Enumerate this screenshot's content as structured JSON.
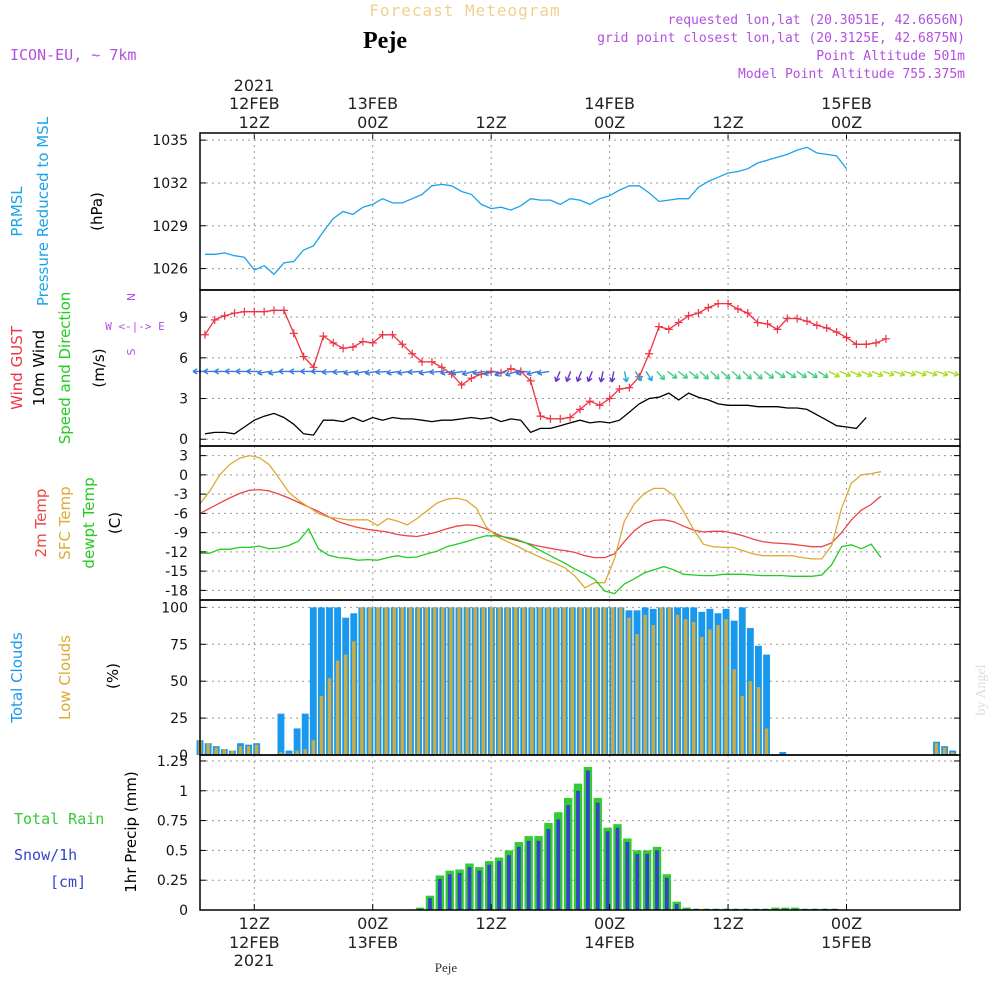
{
  "header": {
    "model": "ICON-EU, ~ 7km",
    "forecast_title": "Forecast Meteogram",
    "location": "Peje",
    "requested": "requested lon,lat (20.3051E, 42.6656N)",
    "grid_point": "grid point closest lon,lat (20.3125E, 42.6875N)",
    "point_alt": "Point Altitude 501m",
    "model_alt": "Model Point Altitude 755.375m",
    "bottom_label": "Peje",
    "watermark": "by Angel"
  },
  "time_axis": {
    "top_year": "2021",
    "ticks": [
      {
        "t": 12,
        "l1": "12FEB",
        "l2": "12Z"
      },
      {
        "t": 24,
        "l1": "13FEB",
        "l2": "00Z"
      },
      {
        "t": 36,
        "l1": "",
        "l2": "12Z"
      },
      {
        "t": 48,
        "l1": "14FEB",
        "l2": "00Z"
      },
      {
        "t": 60,
        "l1": "",
        "l2": "12Z"
      },
      {
        "t": 72,
        "l1": "15FEB",
        "l2": "00Z"
      }
    ],
    "bottom_year": "2021",
    "bottom_ticks": [
      {
        "t": 12,
        "l1": "12Z",
        "l2": "12FEB"
      },
      {
        "t": 24,
        "l1": "00Z",
        "l2": "13FEB"
      },
      {
        "t": 36,
        "l1": "12Z",
        "l2": ""
      },
      {
        "t": 48,
        "l1": "00Z",
        "l2": "14FEB"
      },
      {
        "t": 60,
        "l1": "12Z",
        "l2": ""
      },
      {
        "t": 72,
        "l1": "00Z",
        "l2": "15FEB"
      }
    ],
    "x_range": [
      6.5,
      83.5
    ]
  },
  "colors": {
    "pressure": "#1aa3e8",
    "gust": "#ee3344",
    "wind": "#000000",
    "temp2m": "#ee4444",
    "sfc": "#ddaa33",
    "dewpt": "#22cc22",
    "total_clouds": "#1899ee",
    "low_clouds": "#ccaa44",
    "rain": "#33cc33",
    "snow": "#3344cc",
    "purple": "#b150e0",
    "header_gold": "#f0d090"
  },
  "chart_data": [
    {
      "type": "line",
      "panel": "pressure",
      "label_lines": [
        [
          "PRMSL"
        ],
        [
          "Pressure Reduced to MSL"
        ]
      ],
      "unit": "(hPa)",
      "ylim": [
        1024.5,
        1035.5
      ],
      "yticks": [
        1026,
        1029,
        1032,
        1035
      ],
      "series": [
        {
          "values": [
            1027,
            1027,
            1027.1,
            1026.9,
            1026.8,
            1025.9,
            1026.2,
            1025.6,
            1026.4,
            1026.5,
            1027.3,
            1027.6,
            1028.6,
            1029.5,
            1030,
            1029.8,
            1030.3,
            1030.5,
            1030.9,
            1030.6,
            1030.6,
            1030.9,
            1031.2,
            1031.8,
            1031.9,
            1031.8,
            1031.4,
            1031.2,
            1030.5,
            1030.2,
            1030.3,
            1030.1,
            1030.4,
            1030.9,
            1030.8,
            1030.8,
            1030.5,
            1030.9,
            1030.8,
            1030.5,
            1030.9,
            1031.1,
            1031.5,
            1031.8,
            1031.8,
            1031.3,
            1030.7,
            1030.8,
            1030.9,
            1030.9,
            1031.7,
            1032.1,
            1032.4,
            1032.7,
            1032.8,
            1033,
            1033.4,
            1033.6,
            1033.8,
            1034,
            1034.3,
            1034.5,
            1034.1,
            1034,
            1033.9,
            1033
          ]
        }
      ]
    },
    {
      "type": "line",
      "panel": "wind",
      "label_lines": [
        [
          "Wind GUST"
        ],
        [
          "10m Wind"
        ],
        [
          "Speed and Direction"
        ]
      ],
      "unit": "(m/s)",
      "compass": [
        "N",
        "W <-|-> E",
        "S"
      ],
      "ylim": [
        -0.5,
        11
      ],
      "yticks": [
        0,
        3,
        6,
        9
      ],
      "series": [
        {
          "name": "Wind GUST",
          "values": [
            7.7,
            8.8,
            9.1,
            9.3,
            9.4,
            9.4,
            9.4,
            9.5,
            9.5,
            7.8,
            6.1,
            5.3,
            7.6,
            7.1,
            6.7,
            6.8,
            7.2,
            7.1,
            7.7,
            7.7,
            7,
            6.3,
            5.7,
            5.7,
            5.3,
            4.8,
            4,
            4.5,
            4.8,
            5,
            4.9,
            5.2,
            5,
            4.3,
            1.7,
            1.5,
            1.5,
            1.6,
            2.2,
            2.8,
            2.5,
            3,
            3.7,
            3.8,
            4.6,
            6.3,
            8.3,
            8.1,
            8.6,
            9.1,
            9.3,
            9.7,
            10,
            10,
            9.6,
            9.3,
            8.6,
            8.5,
            8.1,
            8.9,
            8.9,
            8.7,
            8.4,
            8.2,
            7.9,
            7.5,
            7,
            7,
            7.1,
            7.4
          ]
        },
        {
          "name": "10m Wind",
          "values": [
            0.4,
            0.5,
            0.5,
            0.4,
            0.9,
            1.4,
            1.7,
            1.9,
            1.6,
            1.1,
            0.4,
            0.3,
            1.4,
            1.4,
            1.3,
            1.6,
            1.3,
            1.6,
            1.4,
            1.6,
            1.5,
            1.5,
            1.4,
            1.3,
            1.4,
            1.4,
            1.5,
            1.6,
            1.5,
            1.6,
            1.3,
            1.5,
            1.4,
            0.5,
            0.8,
            0.8,
            1,
            1.2,
            1.4,
            1.2,
            1.3,
            1.2,
            1.4,
            2,
            2.6,
            3,
            3.1,
            3.4,
            2.9,
            3.4,
            3.1,
            2.9,
            2.6,
            2.5,
            2.5,
            2.5,
            2.4,
            2.4,
            2.4,
            2.3,
            2.3,
            2.2,
            1.8,
            1.4,
            1,
            0.9,
            0.8,
            1.6
          ]
        }
      ],
      "arrows": {
        "level": 5,
        "angles": [
          180,
          180,
          180,
          180,
          180,
          180,
          170,
          170,
          180,
          180,
          180,
          180,
          175,
          175,
          170,
          170,
          170,
          175,
          170,
          170,
          175,
          170,
          175,
          170,
          170,
          165,
          170,
          165,
          160,
          160,
          170,
          165,
          170,
          110,
          110,
          110,
          110,
          100,
          100,
          80,
          60,
          60,
          50,
          40,
          40,
          40,
          45,
          45,
          45,
          45,
          45,
          45,
          40,
          35,
          35,
          35,
          35,
          35,
          30,
          25,
          25,
          25,
          25,
          20,
          20,
          20,
          20,
          20,
          20,
          20
        ]
      }
    },
    {
      "type": "line",
      "panel": "temperature",
      "label_lines": [
        [
          "2m Temp"
        ],
        [
          "SFC Temp"
        ],
        [
          "dewpt Temp"
        ]
      ],
      "unit": "(C)",
      "ylim": [
        -19.5,
        4.5
      ],
      "yticks": [
        3,
        0,
        -3,
        -6,
        -9,
        -12,
        -15,
        -18
      ],
      "series": [
        {
          "name": "2m Temp",
          "values": [
            -6,
            -5.2,
            -4.4,
            -3.6,
            -2.9,
            -2.4,
            -2.3,
            -2.5,
            -3,
            -3.6,
            -4.3,
            -5,
            -5.7,
            -6.5,
            -7.3,
            -7.8,
            -8.2,
            -8.5,
            -8.7,
            -8.9,
            -9.3,
            -9.5,
            -9.6,
            -9.3,
            -8.9,
            -8.4,
            -8,
            -7.8,
            -7.9,
            -8.4,
            -9.2,
            -9.8,
            -10.2,
            -10.6,
            -11,
            -11.3,
            -11.6,
            -11.8,
            -12.1,
            -12.6,
            -12.9,
            -12.9,
            -12.3,
            -10.4,
            -8.7,
            -7.6,
            -7.1,
            -7,
            -7.3,
            -8,
            -8.6,
            -8.9,
            -8.8,
            -8.8,
            -9.1,
            -9.5,
            -10,
            -10.4,
            -10.6,
            -10.7,
            -10.8,
            -11,
            -11.2,
            -11.2,
            -10.6,
            -9,
            -7,
            -5.5,
            -4.6,
            -3.3
          ]
        },
        {
          "name": "SFC Temp",
          "values": [
            -4.5,
            -2.5,
            0,
            1.6,
            2.6,
            3,
            2.7,
            1.6,
            -0.5,
            -2.7,
            -4,
            -5,
            -6,
            -6.6,
            -6.8,
            -7,
            -7,
            -7,
            -7.9,
            -6.8,
            -7.2,
            -7.8,
            -6.8,
            -5.6,
            -4.4,
            -3.8,
            -3.6,
            -4,
            -5.2,
            -8.1,
            -9.5,
            -10.3,
            -11,
            -11.8,
            -12.5,
            -13.2,
            -13.8,
            -14.5,
            -15.8,
            -17.6,
            -16.8,
            -16.8,
            -13.1,
            -7.2,
            -4.5,
            -2.9,
            -2.1,
            -2.1,
            -3.2,
            -5.7,
            -8.5,
            -10.8,
            -11.2,
            -11.3,
            -11.3,
            -11.8,
            -12.3,
            -12.6,
            -12.6,
            -12.6,
            -12.6,
            -12.9,
            -13.1,
            -13.1,
            -11,
            -5.2,
            -1.3,
            0,
            0.2,
            0.5
          ]
        },
        {
          "name": "dewpt Temp",
          "values": [
            -12.2,
            -12.2,
            -11.6,
            -11.6,
            -11.3,
            -11.3,
            -11.1,
            -11.5,
            -11.4,
            -11,
            -10.3,
            -8.4,
            -11.5,
            -12.5,
            -12.9,
            -13,
            -13.3,
            -13.2,
            -13.3,
            -12.9,
            -12.6,
            -12.9,
            -12.8,
            -12.3,
            -11.9,
            -11.2,
            -10.8,
            -10.4,
            -9.9,
            -9.5,
            -9.5,
            -9.7,
            -10,
            -10.6,
            -11.4,
            -12.2,
            -13,
            -13.8,
            -14.7,
            -15.4,
            -16.3,
            -18.1,
            -18.5,
            -17,
            -16.2,
            -15.3,
            -14.8,
            -14.3,
            -14.8,
            -15.5,
            -15.6,
            -15.7,
            -15.7,
            -15.5,
            -15.5,
            -15.5,
            -15.6,
            -15.7,
            -15.7,
            -15.7,
            -15.8,
            -15.8,
            -15.8,
            -15.6,
            -14,
            -11.2,
            -10.9,
            -11.5,
            -10.8,
            -12.9
          ]
        }
      ]
    },
    {
      "type": "bar",
      "panel": "clouds",
      "label_lines": [
        [
          "Total Clouds"
        ],
        [
          "Low Clouds"
        ]
      ],
      "unit": "(%)",
      "ylim": [
        0,
        105
      ],
      "yticks": [
        0,
        25,
        50,
        75,
        100
      ],
      "series": [
        {
          "name": "Total Clouds",
          "values": [
            10,
            8,
            6,
            4,
            3,
            8,
            7,
            8,
            0,
            0,
            28,
            3,
            18,
            28,
            100,
            100,
            100,
            100,
            93,
            96,
            100,
            100,
            100,
            100,
            100,
            100,
            100,
            100,
            100,
            100,
            100,
            100,
            100,
            100,
            100,
            100,
            100,
            100,
            100,
            100,
            100,
            100,
            100,
            100,
            100,
            100,
            100,
            100,
            100,
            100,
            100,
            100,
            100,
            98,
            98,
            100,
            99,
            100,
            100,
            100,
            100,
            100,
            97,
            99,
            96,
            99,
            91,
            100,
            86,
            74,
            68,
            0,
            2,
            0,
            0,
            0,
            0,
            0,
            0,
            0,
            0,
            0,
            0,
            0,
            0,
            0,
            0,
            0,
            0,
            0,
            0,
            9,
            6,
            3
          ]
        },
        {
          "name": "Low Clouds",
          "values": [
            10,
            8,
            5,
            4,
            3,
            6,
            6,
            7,
            0,
            0,
            2,
            1,
            3,
            4,
            10,
            40,
            52,
            64,
            68,
            77,
            100,
            100,
            100,
            100,
            100,
            100,
            100,
            100,
            100,
            100,
            100,
            100,
            100,
            100,
            100,
            100,
            100,
            100,
            100,
            100,
            100,
            100,
            100,
            100,
            100,
            100,
            100,
            100,
            100,
            100,
            100,
            100,
            100,
            93,
            82,
            95,
            88,
            100,
            100,
            95,
            92,
            90,
            80,
            85,
            88,
            92,
            58,
            40,
            50,
            46,
            18,
            0,
            0,
            0,
            0,
            0,
            0,
            0,
            0,
            0,
            0,
            0,
            0,
            0,
            0,
            0,
            0,
            0,
            0,
            0,
            0,
            8,
            5,
            2
          ]
        }
      ]
    },
    {
      "type": "bar",
      "panel": "precip",
      "label_lines": [
        [
          "Total  Rain"
        ],
        [
          "Snow/1h"
        ],
        [
          "[cm]"
        ]
      ],
      "unit": "1hr Precip (mm)",
      "ylim": [
        0,
        1.3
      ],
      "yticks": [
        0,
        0.25,
        0.5,
        0.75,
        1,
        1.25
      ],
      "series": [
        {
          "name": "Total Rain",
          "values": [
            0,
            0,
            0,
            0,
            0,
            0,
            0,
            0,
            0,
            0,
            0,
            0,
            0,
            0,
            0,
            0,
            0,
            0,
            0,
            0,
            0,
            0,
            0.02,
            0.12,
            0.29,
            0.33,
            0.34,
            0.39,
            0.36,
            0.41,
            0.44,
            0.5,
            0.57,
            0.62,
            0.62,
            0.73,
            0.82,
            0.94,
            1.06,
            1.2,
            0.94,
            0.69,
            0.72,
            0.6,
            0.5,
            0.5,
            0.53,
            0.3,
            0.07,
            0.02,
            0.01,
            0.01,
            0.01,
            0.01,
            0.01,
            0.01,
            0.01,
            0.01,
            0.02,
            0.02,
            0.02,
            0.01,
            0.01,
            0.01,
            0.01,
            0,
            0,
            0,
            0,
            0,
            0,
            0,
            0,
            0,
            0,
            0,
            0
          ]
        },
        {
          "name": "Snow/1h",
          "values": [
            0,
            0,
            0,
            0,
            0,
            0,
            0,
            0,
            0,
            0,
            0,
            0,
            0,
            0,
            0,
            0,
            0,
            0,
            0,
            0,
            0,
            0,
            0.01,
            0.1,
            0.26,
            0.3,
            0.31,
            0.36,
            0.33,
            0.38,
            0.41,
            0.46,
            0.53,
            0.58,
            0.58,
            0.68,
            0.76,
            0.88,
            1,
            1.17,
            0.9,
            0.66,
            0.69,
            0.57,
            0.47,
            0.47,
            0.5,
            0.27,
            0.05,
            0.01,
            0.01,
            0.01,
            0.01,
            0.01,
            0.01,
            0.01,
            0.01,
            0.01,
            0.01,
            0.01,
            0.01,
            0.01,
            0.01,
            0.01,
            0.01,
            0,
            0,
            0,
            0,
            0,
            0,
            0,
            0,
            0,
            0,
            0,
            0
          ]
        }
      ]
    }
  ]
}
